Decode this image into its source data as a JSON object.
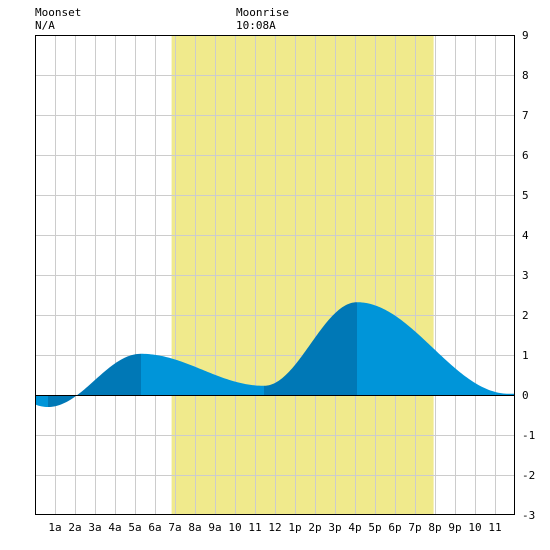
{
  "header": {
    "moonset_label": "Moonset",
    "moonset_value": "N/A",
    "moonrise_label": "Moonrise",
    "moonrise_value": "10:08A"
  },
  "chart_data": {
    "type": "area",
    "title": "",
    "xlabel": "",
    "ylabel": "",
    "x_ticks": [
      {
        "hour": 1,
        "label": "1a"
      },
      {
        "hour": 2,
        "label": "2a"
      },
      {
        "hour": 3,
        "label": "3a"
      },
      {
        "hour": 4,
        "label": "4a"
      },
      {
        "hour": 5,
        "label": "5a"
      },
      {
        "hour": 6,
        "label": "6a"
      },
      {
        "hour": 7,
        "label": "7a"
      },
      {
        "hour": 8,
        "label": "8a"
      },
      {
        "hour": 9,
        "label": "9a"
      },
      {
        "hour": 10,
        "label": "10"
      },
      {
        "hour": 11,
        "label": "11"
      },
      {
        "hour": 12,
        "label": "12"
      },
      {
        "hour": 13,
        "label": "1p"
      },
      {
        "hour": 14,
        "label": "2p"
      },
      {
        "hour": 15,
        "label": "3p"
      },
      {
        "hour": 16,
        "label": "4p"
      },
      {
        "hour": 17,
        "label": "5p"
      },
      {
        "hour": 18,
        "label": "6p"
      },
      {
        "hour": 19,
        "label": "7p"
      },
      {
        "hour": 20,
        "label": "8p"
      },
      {
        "hour": 21,
        "label": "9p"
      },
      {
        "hour": 22,
        "label": "10"
      },
      {
        "hour": 23,
        "label": "11"
      }
    ],
    "xlim": [
      0,
      24
    ],
    "ylim": [
      -3,
      9
    ],
    "y_ticks": [
      "-3",
      "-2",
      "-1",
      "0",
      "1",
      "2",
      "3",
      "4",
      "5",
      "6",
      "7",
      "8",
      "9"
    ],
    "y_ticks_values": [
      -3,
      -2,
      -1,
      0,
      1,
      2,
      3,
      4,
      5,
      6,
      7,
      8,
      9
    ],
    "daylight": {
      "start": 6.83,
      "end": 19.93
    },
    "tide_extremes": [
      {
        "x": 0.65,
        "y": -0.3
      },
      {
        "x": 5.3,
        "y": 1.03
      },
      {
        "x": 11.45,
        "y": 0.23
      },
      {
        "x": 16.1,
        "y": 2.32
      },
      {
        "x": 23.7,
        "y": 0.03
      }
    ],
    "shade_segments": [
      {
        "start": 0,
        "end": 0.65,
        "tone": "light"
      },
      {
        "start": 0.65,
        "end": 5.3,
        "tone": "dark"
      },
      {
        "start": 5.3,
        "end": 11.45,
        "tone": "light"
      },
      {
        "start": 11.45,
        "end": 16.1,
        "tone": "dark"
      },
      {
        "start": 16.1,
        "end": 24,
        "tone": "light"
      }
    ],
    "grid": true,
    "colors": {
      "daylight": "#f0ea8c",
      "tide_light": "#0095d9",
      "tide_dark": "#0078b6",
      "grid": "#cccccc",
      "zero_line": "#000000",
      "axis": "#000000"
    }
  }
}
